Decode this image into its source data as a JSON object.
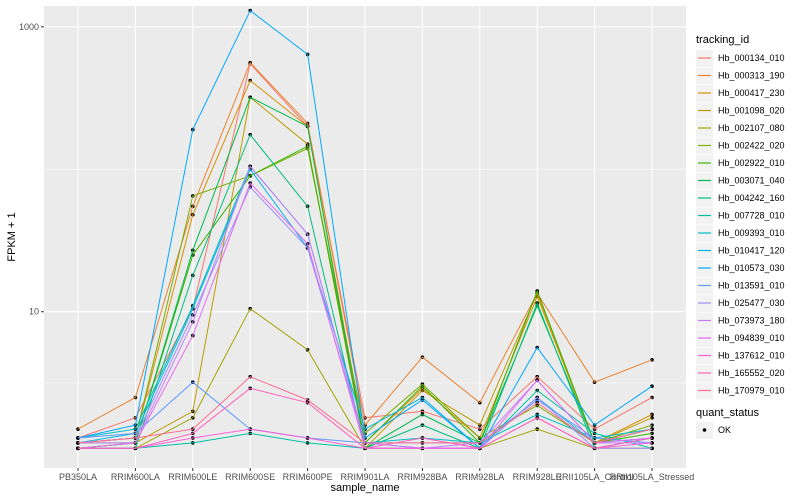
{
  "chart_data": {
    "type": "line",
    "xlabel": "sample_name",
    "ylabel": "FPKM + 1",
    "y_scale": "log10",
    "ylim": [
      0.8,
      1400
    ],
    "yticks": [
      {
        "value": 10,
        "label": "10"
      },
      {
        "value": 1000,
        "label": "1000"
      }
    ],
    "grid": true,
    "legend_position": "right",
    "categories": [
      "PB350LA",
      "RRIM600LA",
      "RRIM600LE",
      "RRIM600SE",
      "RRIM600PE",
      "RRIM901LA",
      "RRIM928BA",
      "RRIM928LA",
      "RRIM928LE",
      "RRII105LA_Control",
      "RRII105LA_Stressed"
    ],
    "color_legend": {
      "title": "tracking_id",
      "series": [
        {
          "name": "Hb_000134_010",
          "color": "#F8766D",
          "values": [
            1.3,
            1.8,
            10.5,
            550,
            200,
            1.8,
            2.0,
            1.5,
            3.5,
            1.5,
            2.5
          ]
        },
        {
          "name": "Hb_000313_190",
          "color": "#EA8331",
          "values": [
            1.5,
            2.5,
            55,
            560,
            210,
            1.6,
            4.8,
            2.3,
            13.5,
            3.2,
            4.6
          ]
        },
        {
          "name": "Hb_000417_230",
          "color": "#D89000",
          "values": [
            1.2,
            1.3,
            48,
            420,
            200,
            1.2,
            2.9,
            1.3,
            12.8,
            1.2,
            1.9
          ]
        },
        {
          "name": "Hb_001098_020",
          "color": "#C09B00",
          "values": [
            1.1,
            1.2,
            2.0,
            320,
            150,
            1.1,
            2.8,
            1.6,
            13.5,
            1.2,
            1.8
          ]
        },
        {
          "name": "Hb_002107_080",
          "color": "#A3A500",
          "values": [
            1.1,
            1.1,
            1.8,
            10.5,
            5.4,
            1.1,
            1.1,
            1.1,
            1.5,
            1.1,
            1.1
          ]
        },
        {
          "name": "Hb_002422_020",
          "color": "#7CAE00",
          "values": [
            1.2,
            1.3,
            65,
            90,
            140,
            1.4,
            3.1,
            1.3,
            2.2,
            1.2,
            1.6
          ]
        },
        {
          "name": "Hb_002922_010",
          "color": "#39B600",
          "values": [
            1.2,
            1.2,
            25,
            90,
            145,
            1.2,
            3.0,
            1.2,
            14,
            1.2,
            1.4
          ]
        },
        {
          "name": "Hb_003071_040",
          "color": "#00BB4E",
          "values": [
            1.1,
            1.2,
            27,
            320,
            200,
            1.1,
            1.9,
            1.2,
            11,
            1.2,
            1.5
          ]
        },
        {
          "name": "Hb_004242_160",
          "color": "#00BF7D",
          "values": [
            1.1,
            1.1,
            18,
            175,
            55,
            1.1,
            1.6,
            1.1,
            11.5,
            1.1,
            1.3
          ]
        },
        {
          "name": "Hb_007728_010",
          "color": "#00C1A3",
          "values": [
            1.1,
            1.1,
            1.2,
            1.4,
            1.2,
            1.1,
            1.1,
            1.1,
            2.8,
            1.4,
            1.1
          ]
        },
        {
          "name": "Hb_009393_010",
          "color": "#00BFC4",
          "values": [
            1.3,
            1.5,
            11,
            105,
            35,
            1.2,
            1.3,
            1.2,
            1.9,
            1.3,
            1.5
          ]
        },
        {
          "name": "Hb_010417_120",
          "color": "#00B8E7",
          "values": [
            1.2,
            1.4,
            10.5,
            100,
            28,
            1.5,
            2.5,
            1.1,
            2.5,
            1.2,
            1.3
          ]
        },
        {
          "name": "Hb_010573_030",
          "color": "#00A9FF",
          "values": [
            1.3,
            1.6,
            190,
            1300,
            640,
            1.3,
            2.4,
            1.1,
            5.6,
            1.6,
            3.0
          ]
        },
        {
          "name": "Hb_013591_010",
          "color": "#619CFF",
          "values": [
            1.3,
            1.4,
            3.2,
            1.5,
            1.3,
            1.2,
            1.2,
            1.2,
            2.4,
            1.3,
            1.2
          ]
        },
        {
          "name": "Hb_025477_030",
          "color": "#9F8CFF",
          "values": [
            1.2,
            1.3,
            9.5,
            75,
            28,
            1.2,
            1.1,
            1.1,
            2.5,
            1.1,
            1.1
          ]
        },
        {
          "name": "Hb_073973_180",
          "color": "#C77CFF",
          "values": [
            1.2,
            1.2,
            8.5,
            105,
            35,
            1.2,
            1.1,
            1.2,
            3.3,
            1.2,
            1.2
          ]
        },
        {
          "name": "Hb_094839_010",
          "color": "#E76BF3",
          "values": [
            1.1,
            1.2,
            6.8,
            80,
            30,
            1.1,
            1.1,
            1.1,
            3.3,
            1.2,
            1.3
          ]
        },
        {
          "name": "Hb_137612_010",
          "color": "#FA62DB",
          "values": [
            1.1,
            1.1,
            1.3,
            1.5,
            1.3,
            1.1,
            1.1,
            1.1,
            1.8,
            1.1,
            1.2
          ]
        },
        {
          "name": "Hb_165552_020",
          "color": "#FF62BC",
          "values": [
            1.1,
            1.1,
            1.4,
            2.9,
            2.3,
            1.1,
            1.3,
            1.1,
            1.8,
            1.1,
            1.3
          ]
        },
        {
          "name": "Hb_170979_010",
          "color": "#FF6C91",
          "values": [
            1.2,
            1.3,
            1.5,
            3.5,
            2.4,
            1.2,
            1.2,
            1.2,
            2.3,
            1.2,
            1.5
          ]
        }
      ]
    },
    "shape_legend": {
      "title": "quant_status",
      "items": [
        {
          "label": "OK",
          "color": "#000000"
        }
      ]
    }
  }
}
